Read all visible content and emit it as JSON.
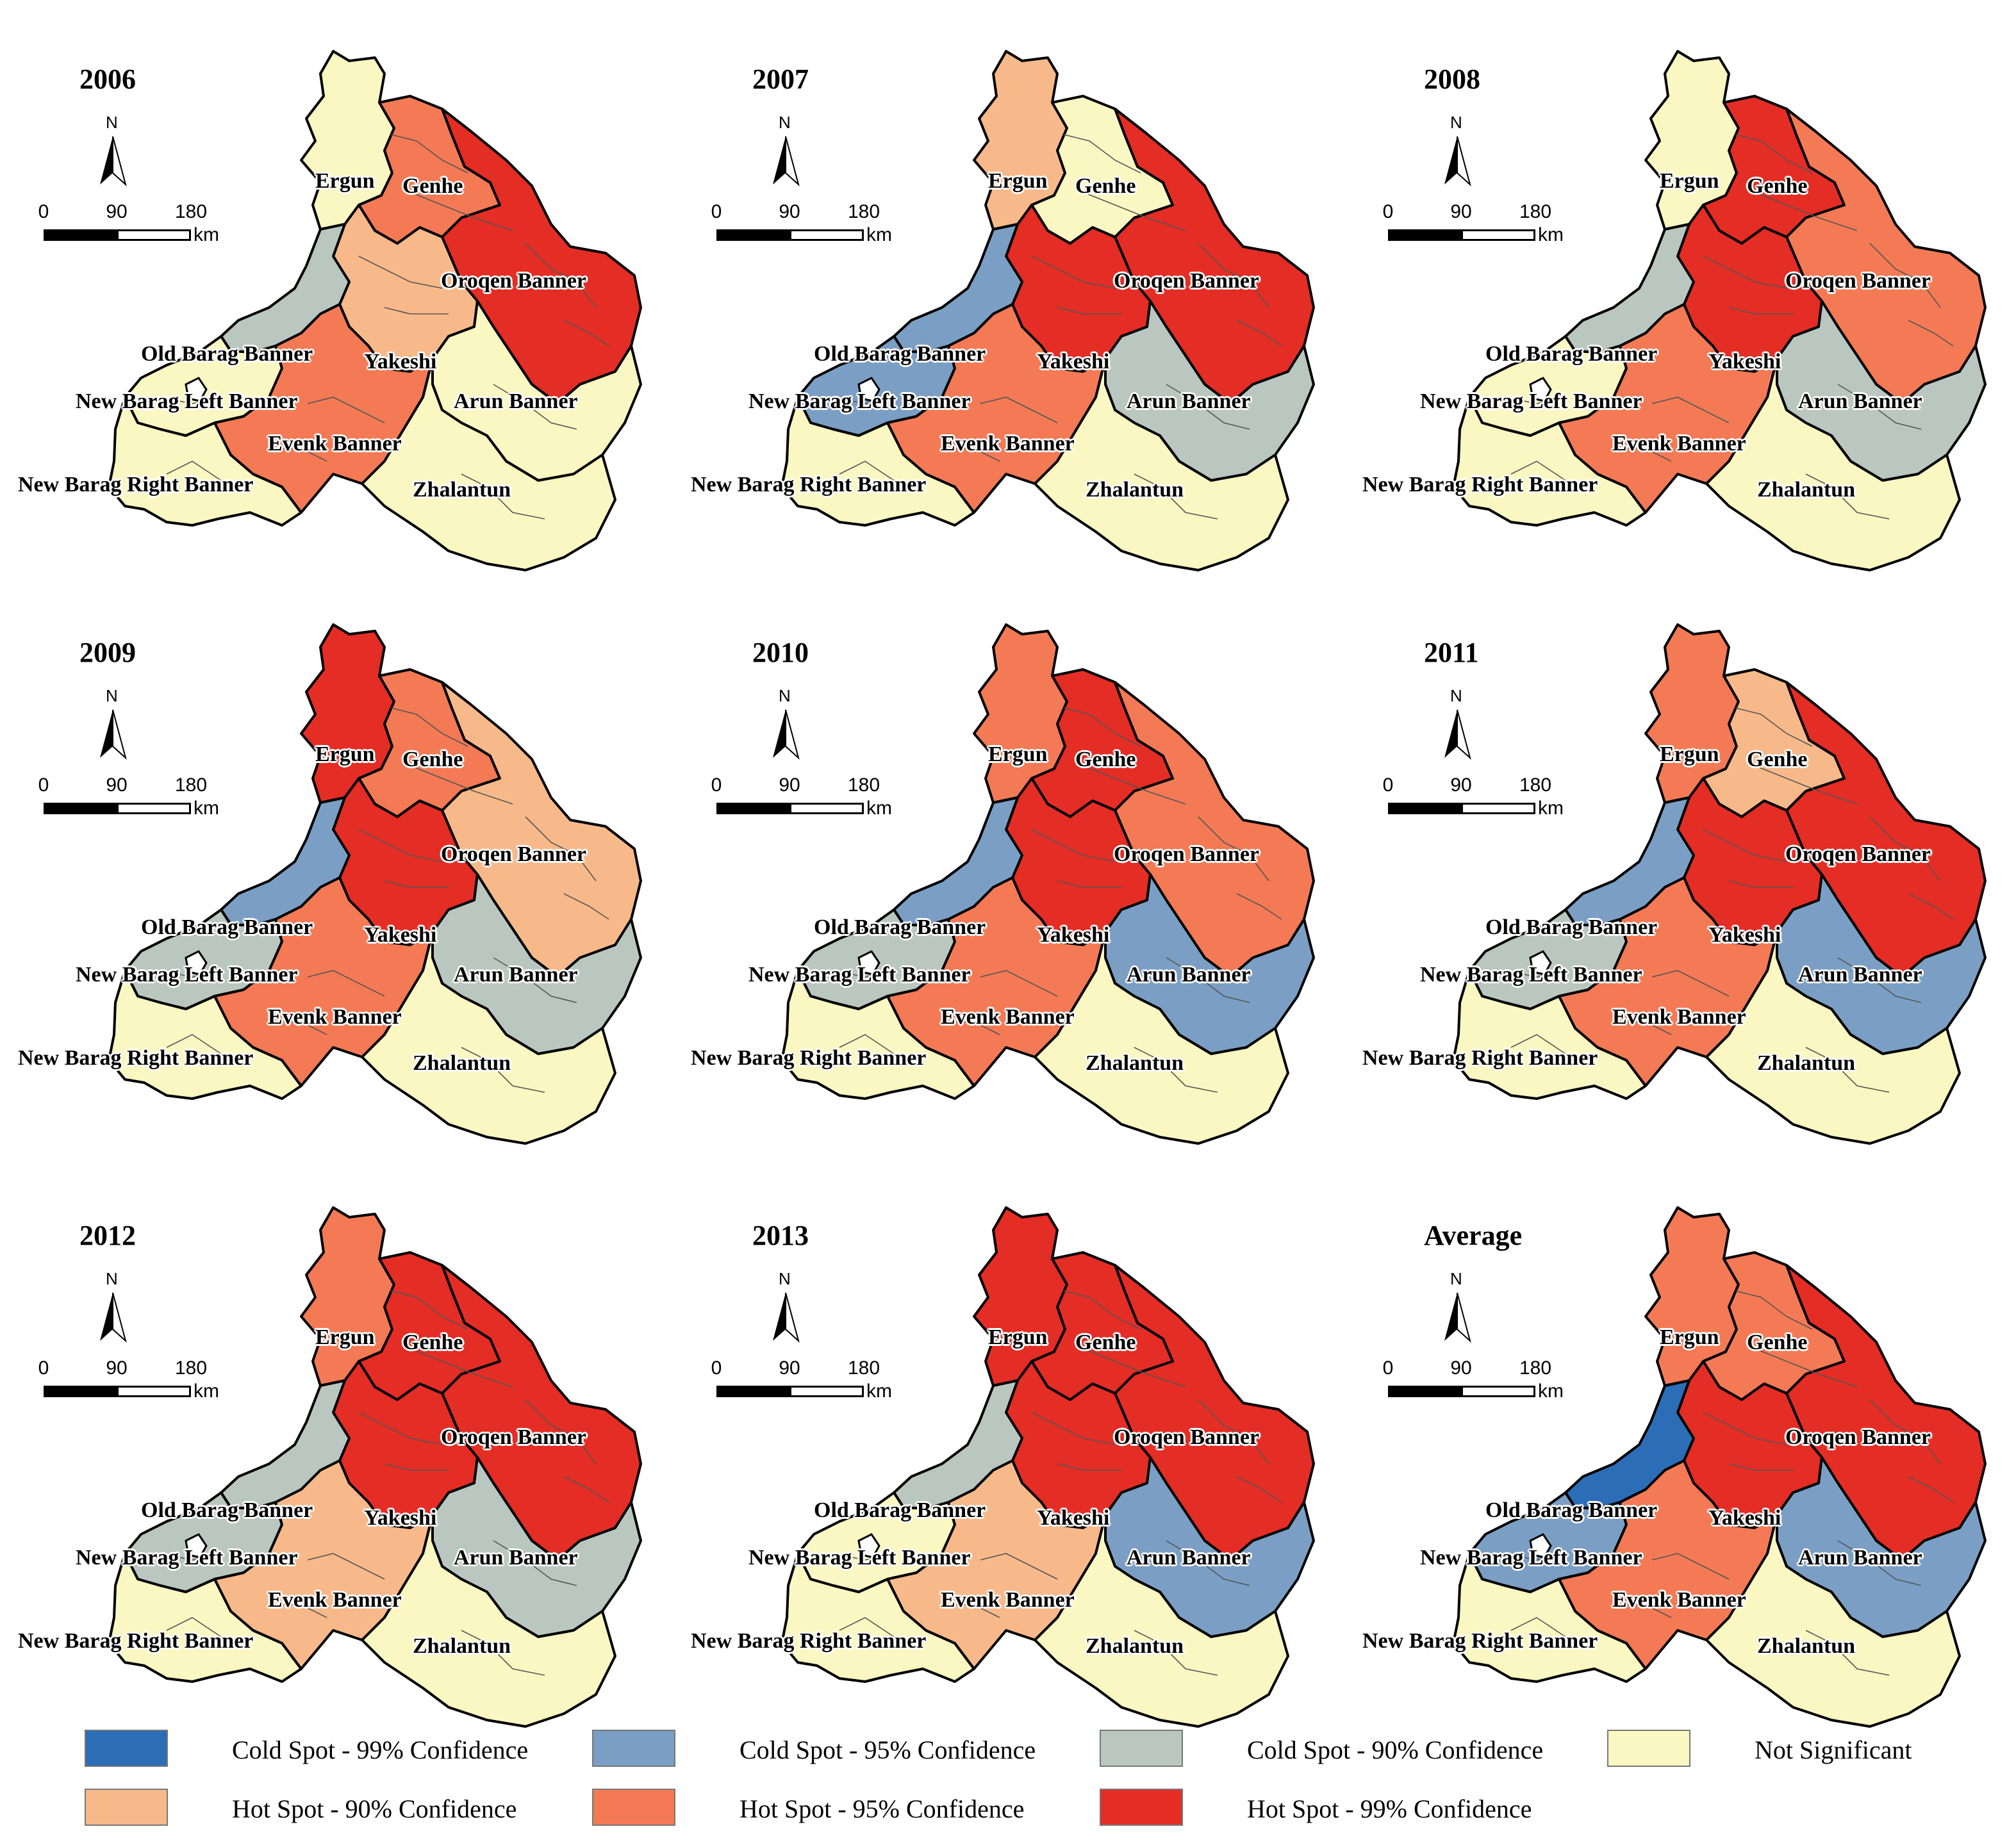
{
  "scale": {
    "ticks": [
      "0",
      "90",
      "180"
    ],
    "unit": "km"
  },
  "north_letter": "N",
  "colors": {
    "cold99": "#2c6db7",
    "cold95": "#7b9fc4",
    "cold90": "#bac7c0",
    "ns": "#fbf7c2",
    "hot90": "#f7b98a",
    "hot95": "#f37a55",
    "hot99": "#e42d25"
  },
  "labels": {
    "ergun": "Ergun",
    "genhe": "Genhe",
    "oroqen": "Oroqen Banner",
    "oldbarag": "Old Barag Banner",
    "yakeshi": "Yakeshi",
    "newbaragleft": "New Barag Left Banner",
    "arun": "Arun Banner",
    "evenk": "Evenk Banner",
    "newbaragright": "New Barag Right Banner",
    "zhalantun": "Zhalantun"
  },
  "panels": [
    {
      "title": "2006",
      "regions": {
        "ergun": "ns",
        "genhe": "hot95",
        "oroqen": "hot99",
        "oldbarag": "cold90",
        "yakeshi": "hot90",
        "newbaragleft": "ns",
        "arun": "ns",
        "evenk": "hot95",
        "newbaragright": "ns",
        "zhalantun": "ns"
      }
    },
    {
      "title": "2007",
      "regions": {
        "ergun": "hot90",
        "genhe": "ns",
        "oroqen": "hot99",
        "oldbarag": "cold95",
        "yakeshi": "hot99",
        "newbaragleft": "cold95",
        "arun": "cold90",
        "evenk": "hot95",
        "newbaragright": "ns",
        "zhalantun": "ns"
      }
    },
    {
      "title": "2008",
      "regions": {
        "ergun": "ns",
        "genhe": "hot99",
        "oroqen": "hot95",
        "oldbarag": "cold90",
        "yakeshi": "hot99",
        "newbaragleft": "ns",
        "arun": "cold90",
        "evenk": "hot95",
        "newbaragright": "ns",
        "zhalantun": "ns"
      }
    },
    {
      "title": "2009",
      "regions": {
        "ergun": "hot99",
        "genhe": "hot95",
        "oroqen": "hot90",
        "oldbarag": "cold95",
        "yakeshi": "hot99",
        "newbaragleft": "cold90",
        "arun": "cold90",
        "evenk": "hot95",
        "newbaragright": "ns",
        "zhalantun": "ns"
      }
    },
    {
      "title": "2010",
      "regions": {
        "ergun": "hot95",
        "genhe": "hot99",
        "oroqen": "hot95",
        "oldbarag": "cold95",
        "yakeshi": "hot99",
        "newbaragleft": "cold90",
        "arun": "cold95",
        "evenk": "hot95",
        "newbaragright": "ns",
        "zhalantun": "ns"
      }
    },
    {
      "title": "2011",
      "regions": {
        "ergun": "hot95",
        "genhe": "hot90",
        "oroqen": "hot99",
        "oldbarag": "cold95",
        "yakeshi": "hot99",
        "newbaragleft": "cold90",
        "arun": "cold95",
        "evenk": "hot95",
        "newbaragright": "ns",
        "zhalantun": "ns"
      }
    },
    {
      "title": "2012",
      "regions": {
        "ergun": "hot95",
        "genhe": "hot99",
        "oroqen": "hot99",
        "oldbarag": "cold90",
        "yakeshi": "hot99",
        "newbaragleft": "cold90",
        "arun": "cold90",
        "evenk": "hot90",
        "newbaragright": "ns",
        "zhalantun": "ns"
      }
    },
    {
      "title": "2013",
      "regions": {
        "ergun": "hot99",
        "genhe": "hot99",
        "oroqen": "hot99",
        "oldbarag": "cold90",
        "yakeshi": "hot99",
        "newbaragleft": "ns",
        "arun": "cold95",
        "evenk": "hot90",
        "newbaragright": "ns",
        "zhalantun": "ns"
      }
    },
    {
      "title": "Average",
      "regions": {
        "ergun": "hot95",
        "genhe": "hot95",
        "oroqen": "hot99",
        "oldbarag": "cold99",
        "yakeshi": "hot99",
        "newbaragleft": "cold95",
        "arun": "cold95",
        "evenk": "hot95",
        "newbaragright": "ns",
        "zhalantun": "ns"
      }
    }
  ],
  "legend": [
    {
      "key": "cold99",
      "label": "Cold Spot - 99% Confidence"
    },
    {
      "key": "cold95",
      "label": "Cold Spot - 95% Confidence"
    },
    {
      "key": "cold90",
      "label": "Cold Spot - 90% Confidence"
    },
    {
      "key": "ns",
      "label": "Not Significant"
    },
    {
      "key": "hot90",
      "label": "Hot Spot - 90% Confidence"
    },
    {
      "key": "hot95",
      "label": "Hot Spot - 95% Confidence"
    },
    {
      "key": "hot99",
      "label": "Hot Spot - 99% Confidence"
    }
  ]
}
